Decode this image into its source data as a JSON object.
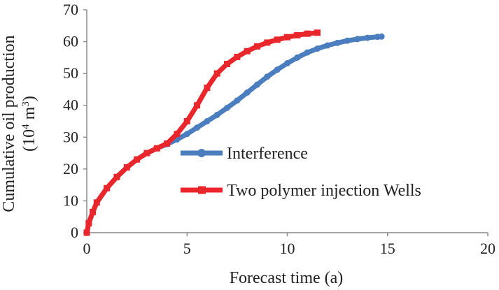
{
  "chart_data": {
    "type": "line",
    "xlabel": "Forecast time (a)",
    "ylabel_line1": "Cumulative oil production",
    "ylabel_line2_base": "(10",
    "ylabel_line2_sup1": "4",
    "ylabel_line2_mid": " m",
    "ylabel_line2_sup2": "3",
    "ylabel_line2_end": ")",
    "xlim": [
      0,
      20
    ],
    "ylim": [
      0,
      70
    ],
    "x_ticks": [
      "0",
      "5",
      "10",
      "15",
      "20"
    ],
    "y_ticks": [
      "0",
      "10",
      "20",
      "30",
      "40",
      "50",
      "60",
      "70"
    ],
    "grid": false,
    "legend_position": "center-right",
    "series": [
      {
        "name": "Interference",
        "color": "#4a7ebf",
        "marker": "circle",
        "x": [
          0,
          0.1,
          0.3,
          0.5,
          1.0,
          1.5,
          2.0,
          2.5,
          3.0,
          3.5,
          4.0,
          4.5,
          5.0,
          5.5,
          6.0,
          6.5,
          7.0,
          7.5,
          8.0,
          8.5,
          9.0,
          9.5,
          10.0,
          10.5,
          11.0,
          11.5,
          12.0,
          12.5,
          13.0,
          13.5,
          14.0,
          14.5,
          14.7
        ],
        "y": [
          0,
          3,
          6.5,
          9.5,
          14,
          17.5,
          20.5,
          23,
          25,
          26.5,
          27.8,
          29.3,
          31,
          33,
          35,
          37,
          39.2,
          41.5,
          44,
          46.5,
          49,
          51.2,
          53.2,
          55,
          56.6,
          57.8,
          58.8,
          59.6,
          60.3,
          60.8,
          61.2,
          61.5,
          61.6
        ]
      },
      {
        "name": "Two polymer injection Wells",
        "color": "#e8262b",
        "marker": "square",
        "x": [
          0,
          0.1,
          0.3,
          0.5,
          1.0,
          1.5,
          2.0,
          2.5,
          3.0,
          3.5,
          4.0,
          4.5,
          5.0,
          5.5,
          6.0,
          6.5,
          7.0,
          7.5,
          8.0,
          8.5,
          9.0,
          9.5,
          10.0,
          10.5,
          11.0,
          11.5
        ],
        "y": [
          0,
          3,
          6.5,
          9.5,
          14,
          17.5,
          20.5,
          23,
          25,
          26.5,
          28,
          31,
          35,
          40,
          45.5,
          50,
          53,
          55.2,
          57,
          58.5,
          59.7,
          60.6,
          61.4,
          62,
          62.5,
          62.8
        ]
      }
    ]
  }
}
